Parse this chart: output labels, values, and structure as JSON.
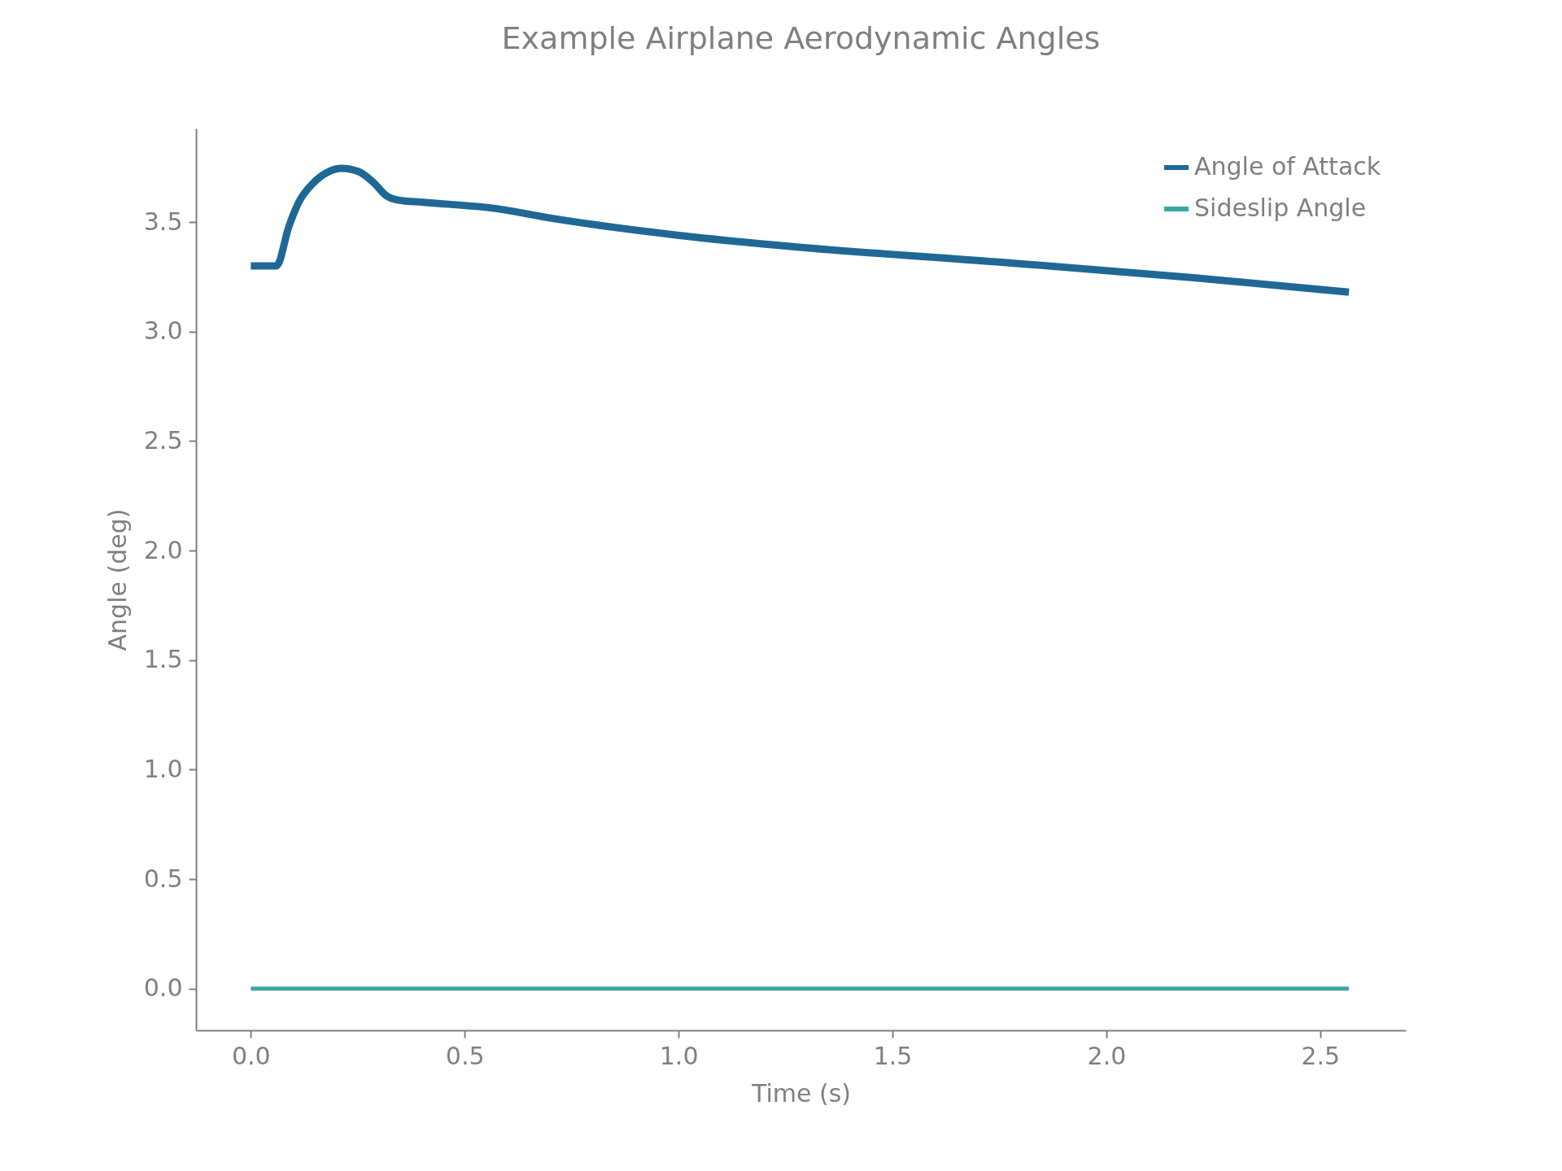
{
  "chart_data": {
    "type": "line",
    "title": "Example Airplane Aerodynamic Angles",
    "xlabel": "Time (s)",
    "ylabel": "Angle (deg)",
    "xlim": [
      -0.128,
      2.7
    ],
    "ylim": [
      -0.19,
      3.927
    ],
    "xticks": [
      {
        "value": 0,
        "label": "0.0"
      },
      0.5,
      {
        "value": 1,
        "label": "1.0"
      },
      1.5,
      {
        "value": 2,
        "label": "2.0"
      },
      2.5
    ],
    "yticks": [
      {
        "value": 0,
        "label": "0.0"
      },
      0.5,
      {
        "value": 1,
        "label": "1.0"
      },
      1.5,
      {
        "value": 2,
        "label": "2.0"
      },
      2.5,
      {
        "value": 3,
        "label": "3.0"
      },
      3.5
    ],
    "grid": false,
    "legend": "top right",
    "line_style": "solid",
    "marker": "none",
    "series": [
      {
        "name": "Angle of Attack",
        "color": "#1f6896",
        "x": [
          0,
          0.06,
          0.089,
          0.112,
          0.147,
          0.182,
          0.212,
          0.252,
          0.287,
          0.317,
          0.345,
          0.403,
          0.578,
          0.694,
          0.81,
          0.997,
          1.277,
          1.743,
          2.209,
          2.567
        ],
        "values": [
          3.3,
          3.3,
          3.48,
          3.59,
          3.68,
          3.73,
          3.745,
          3.73,
          3.68,
          3.62,
          3.6,
          3.59,
          3.56,
          3.52,
          3.486,
          3.44,
          3.386,
          3.318,
          3.245,
          3.18
        ]
      },
      {
        "name": "Sideslip Angle",
        "color": "#3aa6a4",
        "x": [
          0,
          2.567
        ],
        "values": [
          0,
          0
        ]
      }
    ]
  }
}
